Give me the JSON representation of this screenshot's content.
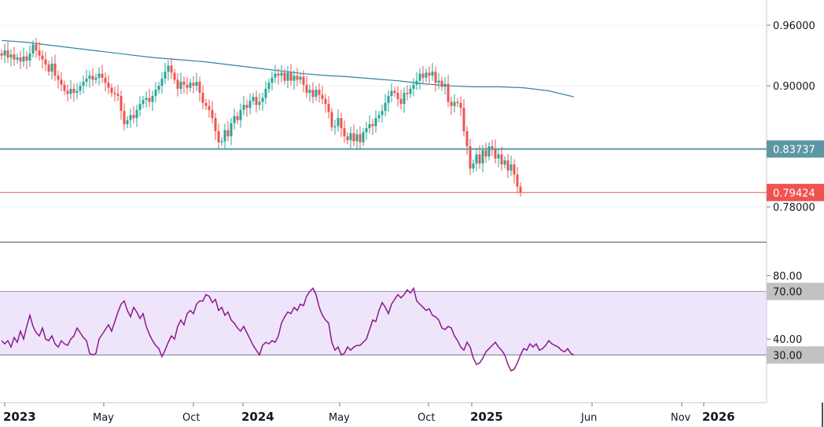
{
  "chart_data": [
    {
      "type": "candlestick",
      "panel": "price",
      "ylim": [
        0.745,
        0.985
      ],
      "y_ticks": [
        "0.96000",
        "0.90000",
        "0.78000"
      ],
      "y_tick_values": [
        0.96,
        0.9,
        0.78
      ],
      "moving_average_color": "#2e84a8",
      "moving_average": [
        [
          0,
          0.945
        ],
        [
          8,
          0.943
        ],
        [
          16,
          0.94
        ],
        [
          24,
          0.937
        ],
        [
          32,
          0.934
        ],
        [
          40,
          0.931
        ],
        [
          48,
          0.928
        ],
        [
          56,
          0.926
        ],
        [
          64,
          0.924
        ],
        [
          72,
          0.921
        ],
        [
          80,
          0.918
        ],
        [
          88,
          0.915
        ],
        [
          96,
          0.912
        ],
        [
          104,
          0.91
        ],
        [
          110,
          0.909
        ],
        [
          118,
          0.907
        ],
        [
          126,
          0.905
        ],
        [
          134,
          0.902
        ],
        [
          142,
          0.9
        ],
        [
          150,
          0.899
        ],
        [
          158,
          0.899
        ],
        [
          166,
          0.898
        ],
        [
          174,
          0.895
        ],
        [
          182,
          0.889
        ]
      ],
      "candles": [
        [
          0.932,
          0.93
        ],
        [
          0.93,
          0.935
        ],
        [
          0.935,
          0.928
        ],
        [
          0.928,
          0.931
        ],
        [
          0.931,
          0.926
        ],
        [
          0.926,
          0.928
        ],
        [
          0.928,
          0.924
        ],
        [
          0.924,
          0.929
        ],
        [
          0.929,
          0.925
        ],
        [
          0.925,
          0.932
        ],
        [
          0.932,
          0.941
        ],
        [
          0.941,
          0.935
        ],
        [
          0.935,
          0.93
        ],
        [
          0.93,
          0.926
        ],
        [
          0.926,
          0.921
        ],
        [
          0.921,
          0.914
        ],
        [
          0.914,
          0.922
        ],
        [
          0.922,
          0.91
        ],
        [
          0.91,
          0.906
        ],
        [
          0.906,
          0.901
        ],
        [
          0.901,
          0.895
        ],
        [
          0.895,
          0.892
        ],
        [
          0.892,
          0.897
        ],
        [
          0.897,
          0.893
        ],
        [
          0.893,
          0.895
        ],
        [
          0.895,
          0.9
        ],
        [
          0.9,
          0.904
        ],
        [
          0.904,
          0.907
        ],
        [
          0.907,
          0.91
        ],
        [
          0.91,
          0.906
        ],
        [
          0.906,
          0.908
        ],
        [
          0.908,
          0.912
        ],
        [
          0.912,
          0.908
        ],
        [
          0.908,
          0.903
        ],
        [
          0.903,
          0.898
        ],
        [
          0.898,
          0.893
        ],
        [
          0.893,
          0.892
        ],
        [
          0.892,
          0.89
        ],
        [
          0.89,
          0.875
        ],
        [
          0.875,
          0.862
        ],
        [
          0.862,
          0.866
        ],
        [
          0.866,
          0.871
        ],
        [
          0.871,
          0.868
        ],
        [
          0.868,
          0.876
        ],
        [
          0.876,
          0.882
        ],
        [
          0.882,
          0.886
        ],
        [
          0.886,
          0.888
        ],
        [
          0.888,
          0.884
        ],
        [
          0.884,
          0.89
        ],
        [
          0.89,
          0.896
        ],
        [
          0.896,
          0.9
        ],
        [
          0.9,
          0.907
        ],
        [
          0.907,
          0.914
        ],
        [
          0.914,
          0.92
        ],
        [
          0.92,
          0.913
        ],
        [
          0.913,
          0.906
        ],
        [
          0.906,
          0.897
        ],
        [
          0.897,
          0.904
        ],
        [
          0.904,
          0.901
        ],
        [
          0.901,
          0.898
        ],
        [
          0.898,
          0.903
        ],
        [
          0.903,
          0.9
        ],
        [
          0.9,
          0.904
        ],
        [
          0.904,
          0.893
        ],
        [
          0.893,
          0.883
        ],
        [
          0.883,
          0.88
        ],
        [
          0.88,
          0.876
        ],
        [
          0.876,
          0.868
        ],
        [
          0.868,
          0.855
        ],
        [
          0.855,
          0.844
        ],
        [
          0.844,
          0.845
        ],
        [
          0.845,
          0.856
        ],
        [
          0.856,
          0.85
        ],
        [
          0.85,
          0.863
        ],
        [
          0.863,
          0.87
        ],
        [
          0.87,
          0.866
        ],
        [
          0.866,
          0.876
        ],
        [
          0.876,
          0.881
        ],
        [
          0.881,
          0.878
        ],
        [
          0.878,
          0.885
        ],
        [
          0.885,
          0.889
        ],
        [
          0.889,
          0.881
        ],
        [
          0.881,
          0.884
        ],
        [
          0.884,
          0.888
        ],
        [
          0.888,
          0.897
        ],
        [
          0.897,
          0.903
        ],
        [
          0.903,
          0.908
        ],
        [
          0.908,
          0.912
        ],
        [
          0.912,
          0.91
        ],
        [
          0.91,
          0.913
        ],
        [
          0.913,
          0.905
        ],
        [
          0.905,
          0.913
        ],
        [
          0.913,
          0.905
        ],
        [
          0.905,
          0.91
        ],
        [
          0.91,
          0.906
        ],
        [
          0.906,
          0.909
        ],
        [
          0.909,
          0.901
        ],
        [
          0.901,
          0.893
        ],
        [
          0.893,
          0.896
        ],
        [
          0.896,
          0.889
        ],
        [
          0.889,
          0.896
        ],
        [
          0.896,
          0.891
        ],
        [
          0.891,
          0.887
        ],
        [
          0.887,
          0.882
        ],
        [
          0.882,
          0.874
        ],
        [
          0.874,
          0.859
        ],
        [
          0.859,
          0.86
        ],
        [
          0.86,
          0.868
        ],
        [
          0.868,
          0.858
        ],
        [
          0.858,
          0.85
        ],
        [
          0.85,
          0.846
        ],
        [
          0.846,
          0.853
        ],
        [
          0.853,
          0.845
        ],
        [
          0.845,
          0.852
        ],
        [
          0.852,
          0.844
        ],
        [
          0.844,
          0.854
        ],
        [
          0.854,
          0.858
        ],
        [
          0.858,
          0.862
        ],
        [
          0.862,
          0.86
        ],
        [
          0.86,
          0.868
        ],
        [
          0.868,
          0.871
        ],
        [
          0.871,
          0.875
        ],
        [
          0.875,
          0.883
        ],
        [
          0.883,
          0.89
        ],
        [
          0.89,
          0.895
        ],
        [
          0.895,
          0.893
        ],
        [
          0.893,
          0.887
        ],
        [
          0.887,
          0.882
        ],
        [
          0.882,
          0.893
        ],
        [
          0.893,
          0.892
        ],
        [
          0.892,
          0.897
        ],
        [
          0.897,
          0.901
        ],
        [
          0.901,
          0.905
        ],
        [
          0.905,
          0.912
        ],
        [
          0.912,
          0.908
        ],
        [
          0.908,
          0.913
        ],
        [
          0.913,
          0.91
        ],
        [
          0.91,
          0.914
        ],
        [
          0.914,
          0.903
        ],
        [
          0.903,
          0.905
        ],
        [
          0.905,
          0.899
        ],
        [
          0.899,
          0.902
        ],
        [
          0.902,
          0.884
        ],
        [
          0.884,
          0.88
        ],
        [
          0.88,
          0.884
        ],
        [
          0.884,
          0.883
        ],
        [
          0.883,
          0.878
        ],
        [
          0.878,
          0.855
        ],
        [
          0.855,
          0.84
        ],
        [
          0.84,
          0.818
        ],
        [
          0.818,
          0.823
        ],
        [
          0.823,
          0.832
        ],
        [
          0.832,
          0.823
        ],
        [
          0.823,
          0.836
        ],
        [
          0.836,
          0.83
        ],
        [
          0.83,
          0.84
        ],
        [
          0.84,
          0.838
        ],
        [
          0.838,
          0.828
        ],
        [
          0.828,
          0.832
        ],
        [
          0.832,
          0.822
        ],
        [
          0.822,
          0.826
        ],
        [
          0.826,
          0.816
        ],
        [
          0.816,
          0.822
        ],
        [
          0.822,
          0.812
        ],
        [
          0.812,
          0.8
        ],
        [
          0.8,
          0.794
        ]
      ],
      "horizontal_lines": [
        {
          "value": 0.83737,
          "label": "0.83737",
          "color": "#5d97a4"
        },
        {
          "value": 0.79424,
          "label": "0.79424",
          "color": "#ef5350"
        }
      ],
      "x_labels": [
        "2023",
        "May",
        "Oct",
        "2024",
        "May",
        "Oct",
        "2025",
        "Jun",
        "Nov",
        "2026"
      ],
      "x_label_bold": [
        true,
        false,
        false,
        true,
        false,
        false,
        true,
        false,
        false,
        true
      ],
      "up_color": "#26a69a",
      "down_color": "#ef5350"
    },
    {
      "type": "line",
      "panel": "rsi",
      "ylim": [
        0,
        100
      ],
      "y_ticks": [
        "80.00",
        "40.00"
      ],
      "y_tick_values": [
        80,
        40
      ],
      "band": [
        30,
        70
      ],
      "band_labels": [
        "70.00",
        "30.00"
      ],
      "line_color": "#8b1a8b",
      "values": [
        39,
        37,
        39,
        35,
        41,
        38,
        45,
        40,
        48,
        55,
        48,
        44,
        42,
        47,
        40,
        39,
        42,
        37,
        35,
        39,
        37,
        36,
        40,
        42,
        47,
        44,
        41,
        39,
        31,
        30,
        31,
        40,
        43,
        46,
        49,
        45,
        51,
        57,
        62,
        64,
        58,
        54,
        60,
        57,
        53,
        56,
        48,
        43,
        39,
        36,
        34,
        29,
        33,
        38,
        42,
        40,
        48,
        52,
        49,
        56,
        58,
        56,
        62,
        64,
        64,
        68,
        67,
        63,
        65,
        58,
        60,
        55,
        57,
        52,
        50,
        47,
        45,
        48,
        44,
        40,
        36,
        33,
        30,
        36,
        38,
        37,
        39,
        38,
        42,
        50,
        54,
        57,
        56,
        60,
        58,
        62,
        61,
        67,
        70,
        72,
        68,
        60,
        55,
        52,
        50,
        38,
        33,
        35,
        30,
        31,
        35,
        33,
        35,
        36,
        36,
        38,
        40,
        46,
        52,
        51,
        58,
        63,
        60,
        56,
        62,
        65,
        68,
        66,
        68,
        71,
        69,
        72,
        64,
        62,
        60,
        58,
        59,
        55,
        54,
        52,
        47,
        46,
        48,
        47,
        42,
        39,
        35,
        33,
        38,
        35,
        28,
        24,
        25,
        28,
        32,
        34,
        36,
        38,
        35,
        33,
        30,
        24,
        20,
        21,
        25,
        30,
        34,
        33,
        37,
        35,
        37,
        33,
        34,
        36,
        39,
        37,
        36,
        35,
        33,
        32,
        34,
        31,
        30
      ]
    }
  ]
}
